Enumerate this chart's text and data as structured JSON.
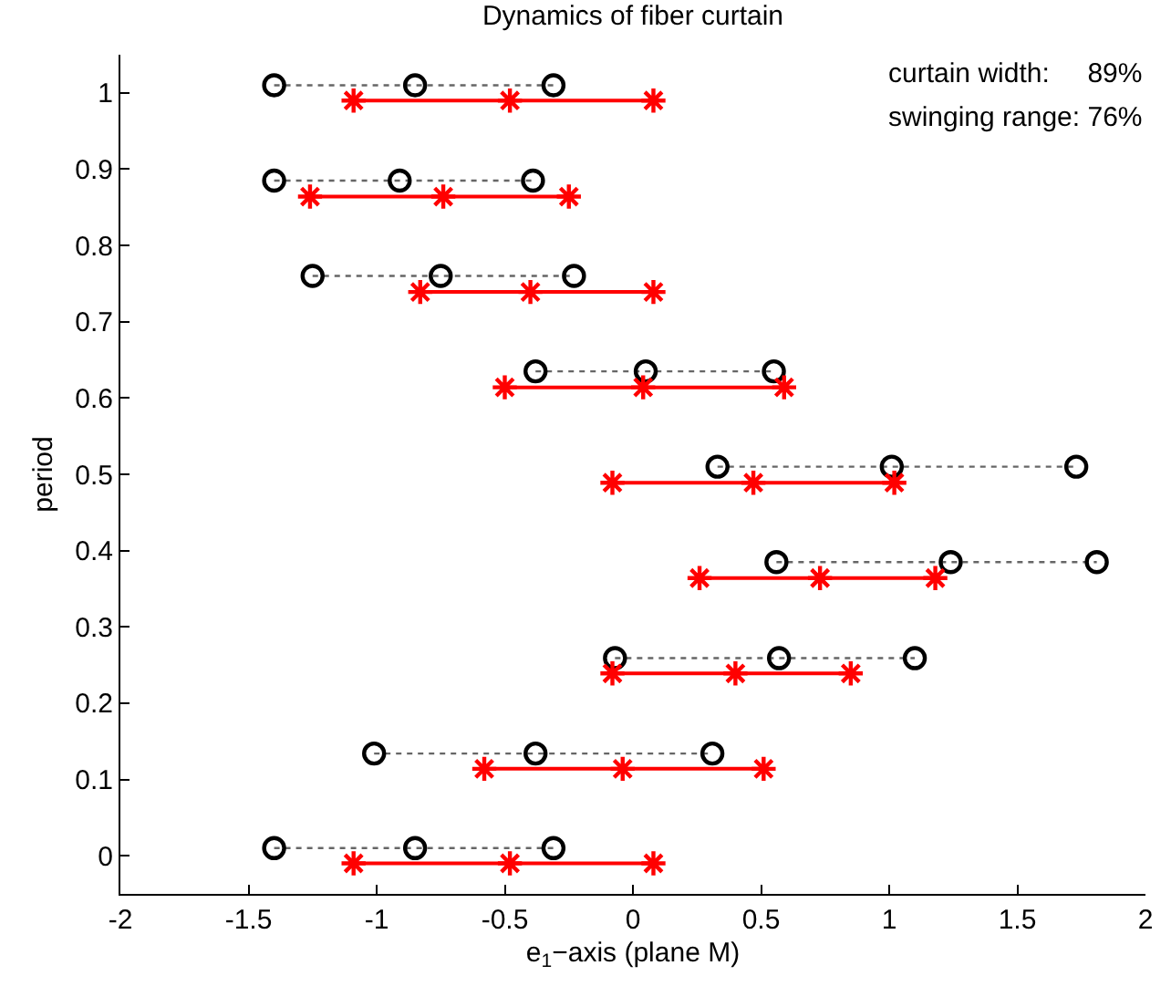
{
  "chart_data": {
    "type": "line",
    "title": "Dynamics of fiber curtain",
    "xlabel": "e$_{1}$−axis (plane M)",
    "ylabel": "period",
    "xlim": [
      -2,
      2
    ],
    "xticks": [
      -2,
      -1.5,
      -1,
      -0.5,
      0,
      0.5,
      1,
      1.5,
      2
    ],
    "ylim": [
      -0.05,
      1.05
    ],
    "yticks": [
      0,
      0.1,
      0.2,
      0.3,
      0.4,
      0.5,
      0.6,
      0.7,
      0.8,
      0.9,
      1
    ],
    "annotations": [
      "curtain width:     89%",
      "swinging range: 76%"
    ],
    "series": [
      {
        "color": "#000000",
        "marker": "circle",
        "line_style": "dotted",
        "x": [
          -1.4,
          -0.85,
          -0.31,
          null,
          -1.01,
          -0.38,
          0.31,
          null,
          -0.07,
          0.57,
          1.1,
          null,
          0.56,
          1.24,
          1.81,
          null,
          0.33,
          1.01,
          1.73,
          null,
          -0.38,
          0.05,
          0.55,
          null,
          -1.25,
          -0.75,
          -0.23,
          null,
          -1.4,
          -0.91,
          -0.39,
          null,
          -1.4,
          -0.85,
          -0.31
        ],
        "values": [
          0.01,
          0.01,
          0.01,
          null,
          0.134,
          0.134,
          0.134,
          null,
          0.259,
          0.259,
          0.259,
          null,
          0.385,
          0.385,
          0.385,
          null,
          0.51,
          0.51,
          0.51,
          null,
          0.635,
          0.635,
          0.635,
          null,
          0.76,
          0.76,
          0.76,
          null,
          0.885,
          0.885,
          0.885,
          null,
          1.01,
          1.01,
          1.01
        ]
      },
      {
        "color": "#ff0000",
        "marker": "cross",
        "line_style": "solid",
        "x": [
          -1.09,
          -0.48,
          0.08,
          null,
          -0.58,
          -0.04,
          0.51,
          null,
          -0.08,
          0.4,
          0.85,
          null,
          0.26,
          0.73,
          1.18,
          null,
          -0.08,
          0.47,
          1.02,
          null,
          -0.5,
          0.04,
          0.59,
          null,
          -0.83,
          -0.4,
          0.08,
          null,
          -1.26,
          -0.74,
          -0.25,
          null,
          -1.09,
          -0.48,
          0.08
        ],
        "values": [
          -0.01,
          -0.01,
          -0.01,
          null,
          0.114,
          0.114,
          0.114,
          null,
          0.239,
          0.239,
          0.239,
          null,
          0.364,
          0.364,
          0.364,
          null,
          0.489,
          0.489,
          0.489,
          null,
          0.614,
          0.614,
          0.614,
          null,
          0.739,
          0.739,
          0.739,
          null,
          0.864,
          0.864,
          0.864,
          null,
          0.99,
          0.99,
          0.99
        ]
      }
    ]
  }
}
